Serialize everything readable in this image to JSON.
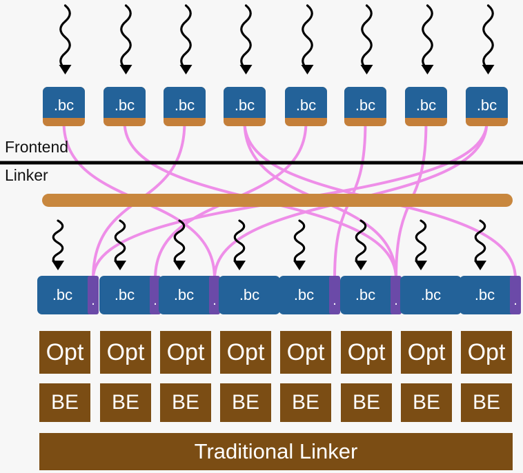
{
  "labels": {
    "frontend": "Frontend",
    "linker": "Linker",
    "traditional_linker": "Traditional Linker"
  },
  "top_modules": [
    ".bc",
    ".bc",
    ".bc",
    ".bc",
    ".bc",
    ".bc",
    ".bc",
    ".bc"
  ],
  "bottom_modules": [
    {
      "label": ".bc",
      "import_tab": "."
    },
    {
      "label": ".bc",
      "import_tab": "."
    },
    {
      "label": ".bc",
      "import_tab": "."
    },
    {
      "label": ".bc",
      "import_tab": ""
    },
    {
      "label": ".bc",
      "import_tab": "."
    },
    {
      "label": ".bc",
      "import_tab": "."
    },
    {
      "label": ".bc",
      "import_tab": ""
    },
    {
      "label": ".bc",
      "import_tab": "."
    }
  ],
  "opt_stages": [
    "Opt",
    "Opt",
    "Opt",
    "Opt",
    "Opt",
    "Opt",
    "Opt",
    "Opt"
  ],
  "be_stages": [
    "BE",
    "BE",
    "BE",
    "BE",
    "BE",
    "BE",
    "BE",
    "BE"
  ],
  "colors": {
    "module_blue": "#236299",
    "module_stripe": "#c47f3a",
    "import_tab": "#6b4aa8",
    "link_bar": "#c8873e",
    "import_edge": "#ee8ee8",
    "stage_brown": "#7b4d14",
    "arrow": "#000000"
  },
  "icons": {
    "input_arrow": "squiggly-arrow-icon"
  }
}
